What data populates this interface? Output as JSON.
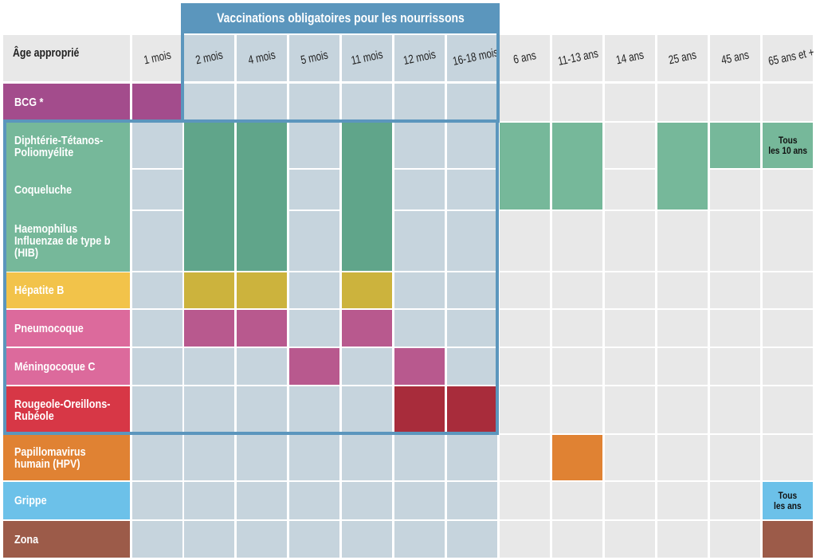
{
  "chart_data": {
    "type": "table",
    "title": "Vaccinations obligatoires pour les nourrissons",
    "corner_label": "Âge approprié",
    "columns": [
      "1 mois",
      "2 mois",
      "4 mois",
      "5 mois",
      "11 mois",
      "12 mois",
      "16-18 mois",
      "6 ans",
      "11-13 ans",
      "14 ans",
      "25 ans",
      "45 ans",
      "65 ans et +"
    ],
    "infant_columns": [
      "2 mois",
      "4 mois",
      "5 mois",
      "11 mois",
      "12 mois",
      "16-18 mois"
    ],
    "rows": [
      {
        "id": "bcg",
        "label": "BCG *",
        "color": "#a34c8c",
        "cells": [
          {
            "col": "1 mois",
            "color": "#a34c8c"
          }
        ]
      },
      {
        "id": "dtp",
        "label": "Diphtérie-Tétanos-\nPoliomyélite",
        "color": "#76b89a",
        "cells": [
          {
            "col": "2 mois",
            "color": "#60a58a"
          },
          {
            "col": "4 mois",
            "color": "#60a58a"
          },
          {
            "col": "11 mois",
            "color": "#60a58a"
          },
          {
            "col": "6 ans",
            "color": "#76b89a"
          },
          {
            "col": "11-13 ans",
            "color": "#76b89a"
          },
          {
            "col": "25 ans",
            "color": "#76b89a"
          },
          {
            "col": "45 ans",
            "color": "#76b89a"
          },
          {
            "col": "65 ans et +",
            "color": "#76b89a",
            "note": "Tous\nles 10 ans"
          }
        ]
      },
      {
        "id": "coqueluche",
        "label": "Coqueluche",
        "color": "#76b89a",
        "cells": [
          {
            "col": "2 mois",
            "color": "#60a58a"
          },
          {
            "col": "4 mois",
            "color": "#60a58a"
          },
          {
            "col": "11 mois",
            "color": "#60a58a"
          },
          {
            "col": "6 ans",
            "color": "#76b89a"
          },
          {
            "col": "11-13 ans",
            "color": "#76b89a"
          },
          {
            "col": "25 ans",
            "color": "#76b89a"
          }
        ]
      },
      {
        "id": "hib",
        "label": "Haemophilus\nInfluenzae de type b\n(HIB)",
        "color": "#76b89a",
        "cells": [
          {
            "col": "2 mois",
            "color": "#60a58a"
          },
          {
            "col": "4 mois",
            "color": "#60a58a"
          },
          {
            "col": "11 mois",
            "color": "#60a58a"
          }
        ]
      },
      {
        "id": "hepb",
        "label": "Hépatite B",
        "color": "#f2c34a",
        "cells": [
          {
            "col": "2 mois",
            "color": "#ccb33d"
          },
          {
            "col": "4 mois",
            "color": "#ccb33d"
          },
          {
            "col": "11 mois",
            "color": "#ccb33d"
          }
        ]
      },
      {
        "id": "pneumo",
        "label": "Pneumocoque",
        "color": "#dc6a9c",
        "cells": [
          {
            "col": "2 mois",
            "color": "#b8598e"
          },
          {
            "col": "4 mois",
            "color": "#b8598e"
          },
          {
            "col": "11 mois",
            "color": "#b8598e"
          }
        ]
      },
      {
        "id": "menin",
        "label": "Méningocoque C",
        "color": "#dc6a9c",
        "cells": [
          {
            "col": "5 mois",
            "color": "#b8598e"
          },
          {
            "col": "12 mois",
            "color": "#b8598e"
          }
        ]
      },
      {
        "id": "ror",
        "label": "Rougeole-Oreillons-\nRubéole",
        "color": "#d73746",
        "cells": [
          {
            "col": "12 mois",
            "color": "#a82c3b"
          },
          {
            "col": "16-18 mois",
            "color": "#a82c3b"
          }
        ]
      },
      {
        "id": "hpv",
        "label": "Papillomavirus\nhumain (HPV)",
        "color": "#e08233",
        "cells": [
          {
            "col": "11-13 ans",
            "color": "#e08233"
          }
        ]
      },
      {
        "id": "grippe",
        "label": "Grippe",
        "color": "#6cc1e9",
        "cells": [
          {
            "col": "65 ans et +",
            "color": "#6cc1e9",
            "note": "Tous\nles ans"
          }
        ]
      },
      {
        "id": "zona",
        "label": "Zona",
        "color": "#9c5b49",
        "cells": [
          {
            "col": "65 ans et +",
            "color": "#9c5b49"
          }
        ]
      }
    ],
    "colors": {
      "empty": "#e8e8e8",
      "infant_empty": "#c6d4dd",
      "frame": "#5b96bd",
      "header_bg": "#e8e8e8"
    }
  }
}
